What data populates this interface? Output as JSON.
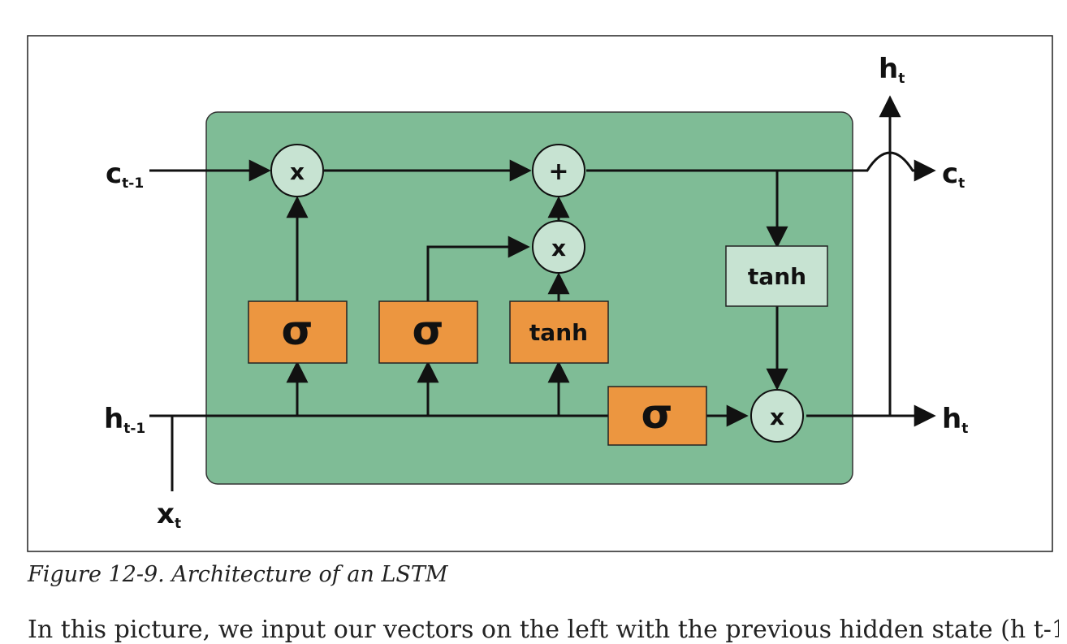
{
  "diagram": {
    "inputs": {
      "c_prev": {
        "main": "c",
        "sub": "t-1"
      },
      "h_prev": {
        "main": "h",
        "sub": "t-1"
      },
      "x_in": {
        "main": "x",
        "sub": "t"
      }
    },
    "outputs": {
      "c_out": {
        "main": "c",
        "sub": "t"
      },
      "h_out_right": {
        "main": "h",
        "sub": "t"
      },
      "h_out_top": {
        "main": "h",
        "sub": "t"
      }
    },
    "ops": {
      "forget_mult": "x",
      "add": "+",
      "input_mult": "x",
      "output_mult": "x"
    },
    "gates": {
      "forget_sigma": "σ",
      "input_sigma": "σ",
      "candidate_tanh": "tanh",
      "output_sigma": "σ",
      "cell_tanh": "tanh"
    },
    "colors": {
      "cell": "#7fbc96",
      "gate": "#ec9640",
      "light": "#c7e3d2",
      "stroke": "#111111"
    }
  },
  "caption": "Figure 12-9. Architecture of an LSTM",
  "body_partial": "In this picture, we input our vectors on the left with the previous hidden state (h t-1)"
}
